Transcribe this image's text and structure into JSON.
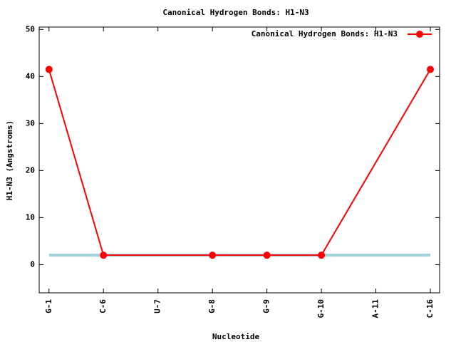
{
  "chart_data": {
    "type": "line",
    "title": "Canonical Hydrogen Bonds: H1-N3",
    "x_label": "Nucleotide",
    "y_label": "H1-N3 (Angstroms)",
    "xlim": [
      0.82,
      8.17
    ],
    "xticks": [
      {
        "value": 1,
        "label": "G-1"
      },
      {
        "value": 2,
        "label": "C-6"
      },
      {
        "value": 3,
        "label": "U-7"
      },
      {
        "value": 4,
        "label": "G-8"
      },
      {
        "value": 5,
        "label": "G-9"
      },
      {
        "value": 6,
        "label": "G-10"
      },
      {
        "value": 7,
        "label": "A-11"
      },
      {
        "value": 8,
        "label": "C-16"
      }
    ],
    "ylim": [
      -6,
      50.5
    ],
    "yticks": [
      0,
      10,
      20,
      30,
      40,
      50
    ],
    "legend_position": "top-right",
    "reference_line": {
      "y": 2,
      "color": "#a0d0d8",
      "xrange": [
        1,
        8
      ]
    },
    "series": [
      {
        "name": "Canonical Hydrogen Bonds: H1-N3",
        "color": "#ff0000",
        "x": [
          1,
          2,
          4,
          5,
          6,
          8
        ],
        "values": [
          41.5,
          2,
          2,
          2,
          2,
          41.5
        ]
      }
    ]
  }
}
